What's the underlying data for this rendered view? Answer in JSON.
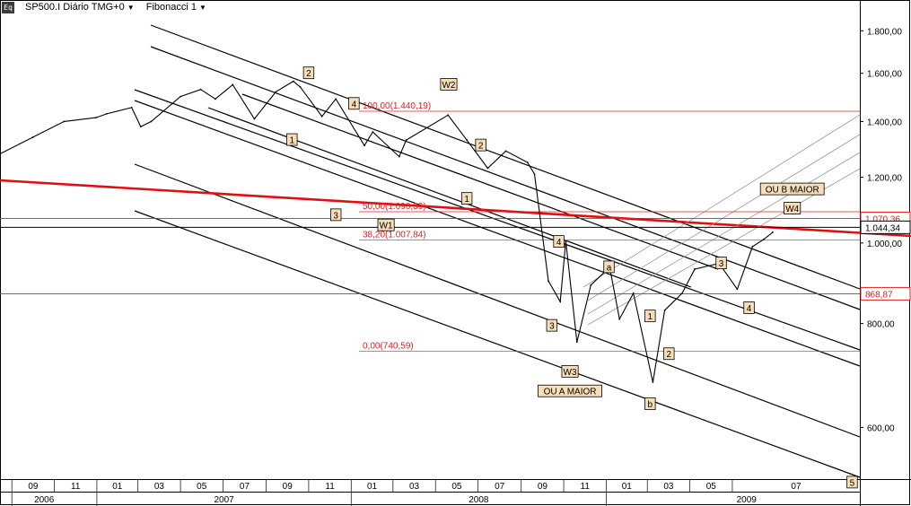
{
  "header": {
    "symbol": "SP500.I Diário TMG+0",
    "study": "Fibonacci 1",
    "icon": "chart-settings-icon"
  },
  "chart_data": {
    "type": "line",
    "title": "",
    "xlabel": "",
    "ylabel": "",
    "y_scale": "log",
    "ylim": [
      520,
      1960
    ],
    "xlim": [
      "2006-08-15",
      "2009-12-31"
    ],
    "grid": false,
    "y_ticks": [
      "1.800,00",
      "1.600,00",
      "1.400,00",
      "1.200,00",
      "1.000,00",
      "800,00",
      "600,00"
    ],
    "y_tick_values": [
      1800,
      1600,
      1400,
      1200,
      1000,
      800,
      600
    ],
    "x_month_labels": [
      "09",
      "11",
      "01",
      "03",
      "05",
      "07",
      "09",
      "11",
      "01",
      "03",
      "05",
      "07",
      "09",
      "11",
      "01",
      "03",
      "05",
      "07"
    ],
    "x_year_labels": [
      "2006",
      "2007",
      "2008",
      "2009"
    ],
    "x_year_dates": [
      "2006-09-01",
      "2007-01-01",
      "2008-01-01",
      "2009-01-01"
    ],
    "series": [
      {
        "x": [
          "2006-08-15",
          "2006-10-01",
          "2006-11-15",
          "2006-12-31",
          "2007-01-15",
          "2007-02-20",
          "2007-03-05",
          "2007-03-20",
          "2007-05-01",
          "2007-05-30",
          "2007-06-20",
          "2007-07-15",
          "2007-08-15",
          "2007-09-15",
          "2007-10-10",
          "2007-10-20",
          "2007-11-20",
          "2007-12-10",
          "2008-01-20",
          "2008-02-01",
          "2008-03-10",
          "2008-03-20",
          "2008-05-19",
          "2008-06-15",
          "2008-07-15",
          "2008-08-10",
          "2008-09-10",
          "2008-09-20",
          "2008-10-10",
          "2008-10-27",
          "2008-11-04",
          "2008-11-20",
          "2008-12-10",
          "2009-01-06",
          "2009-01-20",
          "2009-02-09",
          "2009-03-09",
          "2009-03-26",
          "2009-04-20",
          "2009-05-08",
          "2009-06-12",
          "2009-07-08",
          "2009-07-30",
          "2009-08-15",
          "2009-08-28"
        ],
        "values": [
          1280,
          1340,
          1400,
          1415,
          1430,
          1455,
          1380,
          1400,
          1500,
          1530,
          1490,
          1550,
          1410,
          1520,
          1565,
          1540,
          1420,
          1490,
          1310,
          1360,
          1270,
          1330,
          1425,
          1330,
          1230,
          1290,
          1250,
          1210,
          900,
          850,
          1005,
          760,
          890,
          935,
          810,
          870,
          680,
          830,
          870,
          930,
          945,
          880,
          990,
          1010,
          1030
        ]
      }
    ],
    "fibonacci": {
      "levels": [
        {
          "label": "100,00(1.440,19)",
          "value": 1440.19
        },
        {
          "label": "50,00(1.090,39)",
          "value": 1090.39
        },
        {
          "label": "38,20(1.007,84)",
          "value": 1007.84
        },
        {
          "label": "0,00(740,59)",
          "value": 740.59
        }
      ],
      "color": "#e02020"
    },
    "price_tags": [
      {
        "label": "1.070,36",
        "value": 1070.36,
        "color": "#e02020"
      },
      {
        "label": "1.044,34",
        "value": 1044.34,
        "color": "#000000"
      },
      {
        "label": "868,87",
        "value": 868.87,
        "color": "#e02020"
      }
    ],
    "wave_labels": [
      {
        "text": "2",
        "x": "2007-11-01",
        "y": 1600
      },
      {
        "text": "1",
        "x": "2007-10-08",
        "y": 1330
      },
      {
        "text": "3",
        "x": "2007-12-10",
        "y": 1080
      },
      {
        "text": "4",
        "x": "2008-01-05",
        "y": 1470
      },
      {
        "text": "W1",
        "x": "2008-02-20",
        "y": 1050
      },
      {
        "text": "W2",
        "x": "2008-05-20",
        "y": 1550
      },
      {
        "text": "2",
        "x": "2008-07-05",
        "y": 1310
      },
      {
        "text": "1",
        "x": "2008-06-15",
        "y": 1130
      },
      {
        "text": "4",
        "x": "2008-10-25",
        "y": 1003
      },
      {
        "text": "3",
        "x": "2008-10-15",
        "y": 795
      },
      {
        "text": "W3",
        "x": "2008-11-10",
        "y": 700
      },
      {
        "text": "OU A MAIOR",
        "x": "2008-11-10",
        "y": 663
      },
      {
        "text": "a",
        "x": "2009-01-05",
        "y": 935
      },
      {
        "text": "1",
        "x": "2009-03-05",
        "y": 816
      },
      {
        "text": "2",
        "x": "2009-04-01",
        "y": 735
      },
      {
        "text": "b",
        "x": "2009-03-05",
        "y": 640
      },
      {
        "text": "3",
        "x": "2009-06-15",
        "y": 945
      },
      {
        "text": "4",
        "x": "2009-07-25",
        "y": 835
      },
      {
        "text": "OU B MAIOR",
        "x": "2009-09-25",
        "y": 1160
      },
      {
        "text": "W4",
        "x": "2009-09-25",
        "y": 1100
      },
      {
        "text": "5",
        "x": "2009-12-20",
        "y": 515
      }
    ]
  }
}
